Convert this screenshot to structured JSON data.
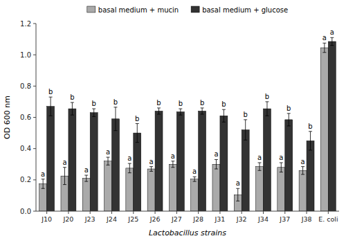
{
  "chart_data": {
    "type": "bar",
    "xlabel": "Lactobacillus strains",
    "ylabel": "OD 600 nm",
    "categories": [
      "J10",
      "J20",
      "J23",
      "J24",
      "J25",
      "J26",
      "J27",
      "J28",
      "J31",
      "J32",
      "J34",
      "J37",
      "J38",
      "E. coli"
    ],
    "series": [
      {
        "name": "basal medium + mucin",
        "color": "#aaaaaa",
        "values": [
          0.175,
          0.225,
          0.21,
          0.32,
          0.275,
          0.27,
          0.3,
          0.205,
          0.3,
          0.105,
          0.285,
          0.28,
          0.26,
          1.045
        ],
        "errors": [
          0.03,
          0.055,
          0.02,
          0.025,
          0.03,
          0.015,
          0.02,
          0.015,
          0.03,
          0.04,
          0.025,
          0.03,
          0.025,
          0.03
        ],
        "annotations": [
          "a",
          "a",
          "a",
          "a",
          "a",
          "a",
          "a",
          "a",
          "a",
          "a",
          "a",
          "a",
          "a",
          "a"
        ]
      },
      {
        "name": "basal medium + glucose",
        "color": "#333333",
        "values": [
          0.67,
          0.655,
          0.63,
          0.59,
          0.5,
          0.64,
          0.635,
          0.64,
          0.61,
          0.52,
          0.655,
          0.585,
          0.45,
          1.085
        ],
        "errors": [
          0.06,
          0.04,
          0.025,
          0.075,
          0.06,
          0.02,
          0.02,
          0.02,
          0.04,
          0.065,
          0.045,
          0.04,
          0.06,
          0.025
        ],
        "annotations": [
          "b",
          "b",
          "b",
          "b",
          "b",
          "b",
          "b",
          "b",
          "b",
          "b",
          "b",
          "b",
          "b",
          "a"
        ]
      }
    ],
    "ylim": [
      0,
      1.2
    ],
    "yticks": [
      {
        "value": 0,
        "label": "0.0"
      },
      0.2,
      0.4,
      0.6,
      0.8,
      {
        "value": 1,
        "label": "1.0"
      },
      1.2
    ],
    "grid": false,
    "legend": "top"
  }
}
